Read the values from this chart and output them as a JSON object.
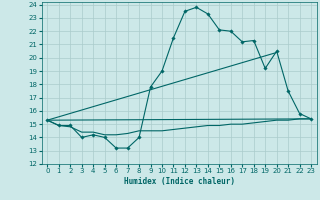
{
  "xlabel": "Humidex (Indice chaleur)",
  "background_color": "#cce8e8",
  "grid_color": "#aacccc",
  "line_color": "#006666",
  "xlim": [
    -0.5,
    23.5
  ],
  "ylim": [
    12,
    24.2
  ],
  "xticks": [
    0,
    1,
    2,
    3,
    4,
    5,
    6,
    7,
    8,
    9,
    10,
    11,
    12,
    13,
    14,
    15,
    16,
    17,
    18,
    19,
    20,
    21,
    22,
    23
  ],
  "yticks": [
    12,
    13,
    14,
    15,
    16,
    17,
    18,
    19,
    20,
    21,
    22,
    23,
    24
  ],
  "line1_x": [
    0,
    1,
    2,
    3,
    4,
    5,
    6,
    7,
    8,
    9,
    10,
    11,
    12,
    13,
    14,
    15,
    16,
    17,
    18,
    19,
    20,
    21,
    22,
    23
  ],
  "line1_y": [
    15.3,
    14.9,
    14.9,
    14.0,
    14.2,
    14.0,
    13.2,
    13.2,
    14.0,
    17.8,
    19.0,
    21.5,
    23.5,
    23.8,
    23.3,
    22.1,
    22.0,
    21.2,
    21.3,
    19.2,
    20.5,
    17.5,
    15.8,
    15.4
  ],
  "line2_x": [
    0,
    23
  ],
  "line2_y": [
    15.3,
    15.4
  ],
  "line3_x": [
    0,
    20
  ],
  "line3_y": [
    15.3,
    20.4
  ],
  "line4_x": [
    0,
    1,
    2,
    3,
    4,
    5,
    6,
    7,
    8,
    9,
    10,
    11,
    12,
    13,
    14,
    15,
    16,
    17,
    18,
    19,
    20,
    21,
    22,
    23
  ],
  "line4_y": [
    15.3,
    14.9,
    14.8,
    14.4,
    14.4,
    14.2,
    14.2,
    14.3,
    14.5,
    14.5,
    14.5,
    14.6,
    14.7,
    14.8,
    14.9,
    14.9,
    15.0,
    15.0,
    15.1,
    15.2,
    15.3,
    15.3,
    15.4,
    15.4
  ]
}
